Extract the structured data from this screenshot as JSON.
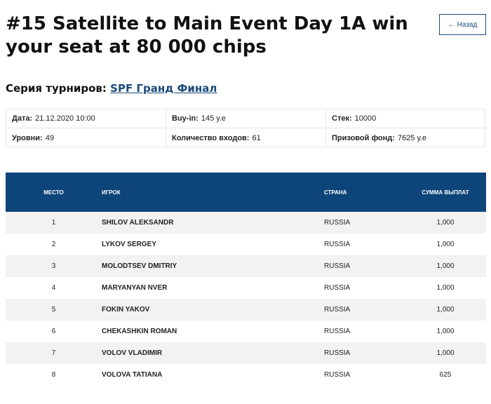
{
  "page": {
    "title": "#15 Satellite to Main Event Day 1A win your seat at 80 000 chips",
    "back_label": "Назад",
    "back_icon": "arrow-left-icon"
  },
  "series": {
    "label": "Серия турниров:",
    "link_text": "SPF Гранд Финал"
  },
  "info": {
    "date_label": "Дата:",
    "date_value": "21.12.2020 10:00",
    "buyin_label": "Buy-in:",
    "buyin_value": "145 у.е",
    "stack_label": "Стек:",
    "stack_value": "10000",
    "levels_label": "Уровни:",
    "levels_value": "49",
    "entries_label": "Количество входов:",
    "entries_value": "61",
    "prize_label": "Призовой фонд:",
    "prize_value": "7625 у.е"
  },
  "table": {
    "headers": [
      "Место",
      "Игрок",
      "Страна",
      "Сумма выплат"
    ],
    "rows": [
      {
        "place": "1",
        "player": "SHILOV ALEKSANDR",
        "country": "RUSSIA",
        "sum": "1,000"
      },
      {
        "place": "2",
        "player": "LYKOV SERGEY",
        "country": "RUSSIA",
        "sum": "1,000"
      },
      {
        "place": "3",
        "player": "MOLODTSEV DMITRIY",
        "country": "RUSSIA",
        "sum": "1,000"
      },
      {
        "place": "4",
        "player": "MARYANYAN NVER",
        "country": "RUSSIA",
        "sum": "1,000"
      },
      {
        "place": "5",
        "player": "FOKIN YAKOV",
        "country": "RUSSIA",
        "sum": "1,000"
      },
      {
        "place": "6",
        "player": "CHEKASHKIN ROMAN",
        "country": "RUSSIA",
        "sum": "1,000"
      },
      {
        "place": "7",
        "player": "VOLOV VLADIMIR",
        "country": "RUSSIA",
        "sum": "1,000"
      },
      {
        "place": "8",
        "player": "VOLOVA TATIANA",
        "country": "RUSSIA",
        "sum": "625"
      }
    ]
  },
  "colors": {
    "header_bg": "#0d4479",
    "link": "#1a4a7a",
    "row_alt": "#f2f2f2"
  }
}
